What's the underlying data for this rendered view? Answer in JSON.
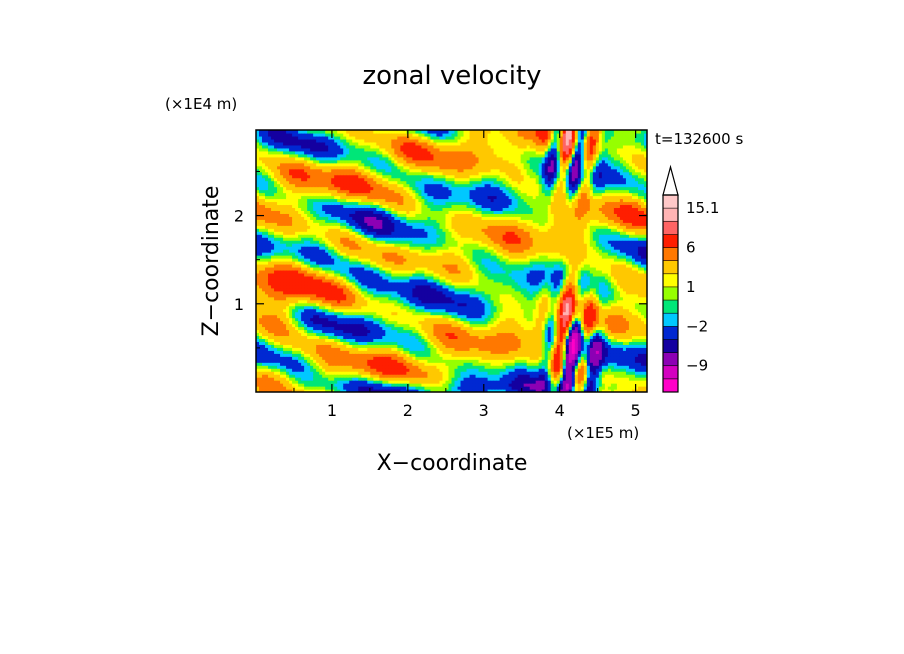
{
  "chart_data": {
    "type": "heatmap",
    "title": "zonal velocity",
    "xlabel": "X−coordinate",
    "ylabel": "Z−coordinate",
    "x_unit": "(×1E5 m)",
    "y_unit": "(×1E4 m)",
    "time_label": "t=132600 s",
    "xlim": [
      0,
      5.15
    ],
    "ylim": [
      0,
      2.97
    ],
    "x_ticks": [
      1,
      2,
      3,
      4,
      5
    ],
    "y_ticks": [
      1,
      2
    ],
    "x_tick_labels": [
      "1",
      "2",
      "3",
      "4",
      "5"
    ],
    "y_tick_labels": [
      "1",
      "2"
    ],
    "colorbar": {
      "levels": [
        -15,
        -12,
        -9,
        -6,
        -4,
        -2,
        -1,
        0,
        1,
        2,
        4,
        6,
        9,
        12,
        15.1
      ],
      "colors": [
        "#ff00c8",
        "#d300c0",
        "#8c00b4",
        "#1400a0",
        "#0028d2",
        "#00c8ff",
        "#00e678",
        "#96ff00",
        "#ffff00",
        "#ffc800",
        "#ff7800",
        "#ff1e00",
        "#ff6464",
        "#ffb4b4",
        "#ffc8c8"
      ],
      "extend": "max",
      "labels": [
        {
          "value": 15.1,
          "text": "15.1"
        },
        {
          "value": 6,
          "text": "6"
        },
        {
          "value": 1,
          "text": "1"
        },
        {
          "value": -2,
          "text": "−2"
        },
        {
          "value": -9,
          "text": "−9"
        }
      ]
    },
    "field_summary": "zonal velocity contours: alternating positive (yellow/orange) and negative (blue) bands sloping down from upper-left, strong positive/negative wave packet near x=3.8-4.6 (x1E5 m)"
  }
}
